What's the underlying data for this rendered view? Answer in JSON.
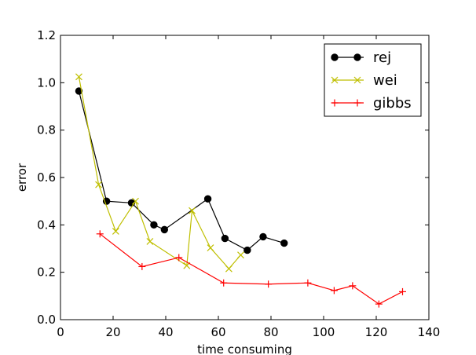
{
  "chart_data": {
    "type": "line",
    "title": "",
    "xlabel": "time consuming",
    "ylabel": "error",
    "xlim": [
      0,
      140
    ],
    "ylim": [
      0.0,
      1.2
    ],
    "x_ticks": [
      "0",
      "20",
      "40",
      "60",
      "80",
      "100",
      "120",
      "140"
    ],
    "y_ticks": [
      "0.0",
      "0.2",
      "0.4",
      "0.6",
      "0.8",
      "1.0",
      "1.2"
    ],
    "grid": false,
    "legend_position": "top-right",
    "series": [
      {
        "name": "rej",
        "color": "#000000",
        "marker": "circle",
        "points": [
          [
            7,
            0.965
          ],
          [
            17.5,
            0.5
          ],
          [
            27,
            0.493
          ],
          [
            35.5,
            0.4
          ],
          [
            39.5,
            0.38
          ],
          [
            56,
            0.51
          ],
          [
            62.5,
            0.343
          ],
          [
            71,
            0.293
          ],
          [
            77,
            0.35
          ],
          [
            85,
            0.323
          ]
        ]
      },
      {
        "name": "wei",
        "color": "#bfbf00",
        "marker": "x",
        "points": [
          [
            7,
            1.025
          ],
          [
            14.5,
            0.57
          ],
          [
            21,
            0.373
          ],
          [
            28.5,
            0.5
          ],
          [
            34,
            0.33
          ],
          [
            48,
            0.228
          ],
          [
            50,
            0.46
          ],
          [
            57,
            0.303
          ],
          [
            64,
            0.215
          ],
          [
            68.5,
            0.273
          ]
        ]
      },
      {
        "name": "gibbs",
        "color": "#ff0000",
        "marker": "plus",
        "points": [
          [
            15,
            0.362
          ],
          [
            31,
            0.224
          ],
          [
            45,
            0.262
          ],
          [
            62,
            0.155
          ],
          [
            79,
            0.15
          ],
          [
            94,
            0.155
          ],
          [
            104,
            0.123
          ],
          [
            111,
            0.143
          ],
          [
            121,
            0.066
          ],
          [
            130,
            0.118
          ]
        ]
      }
    ]
  }
}
